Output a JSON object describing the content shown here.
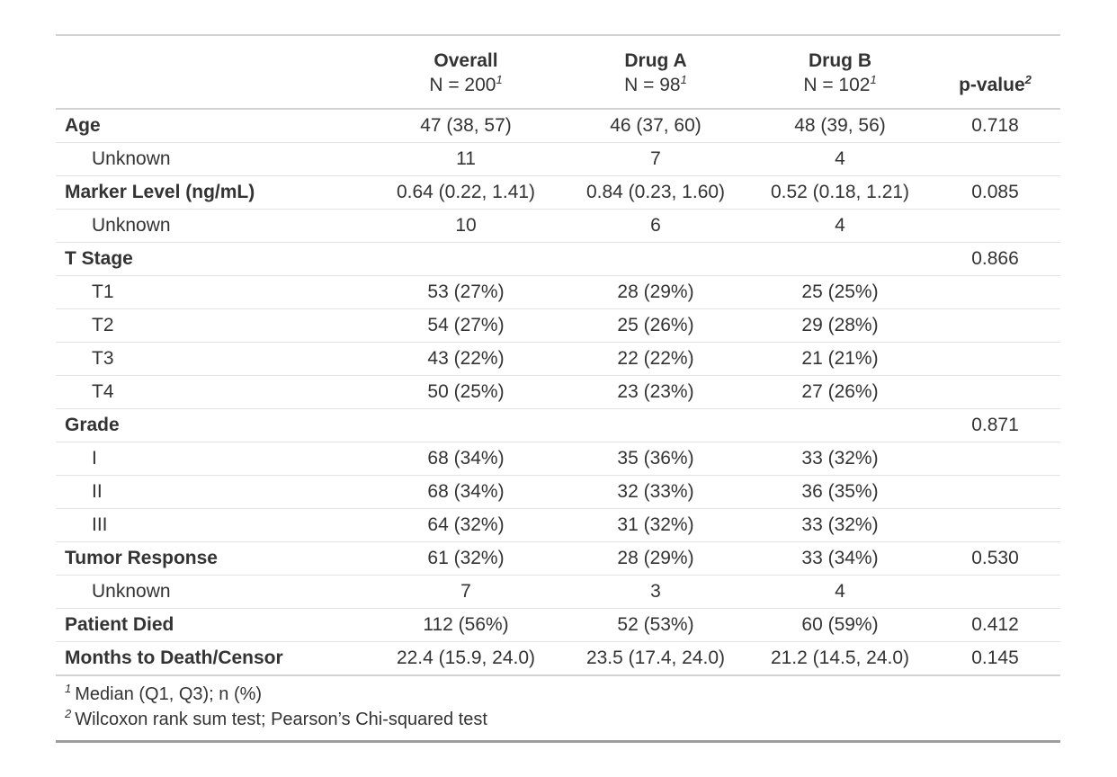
{
  "style": {
    "text_color": "#333333",
    "rule_light": "#e4e4e4",
    "rule_medium": "#d2d2d2",
    "rule_dark": "#9d9d9d",
    "background": "#ffffff"
  },
  "table": {
    "columns": [
      {
        "label": "",
        "sublabel": "",
        "footnote_ref": ""
      },
      {
        "label": "Overall",
        "sublabel": "N = 200",
        "footnote_ref": "1"
      },
      {
        "label": "Drug A",
        "sublabel": "N = 98",
        "footnote_ref": "1"
      },
      {
        "label": "Drug B",
        "sublabel": "N = 102",
        "footnote_ref": "1"
      },
      {
        "label": "p-value",
        "sublabel": "",
        "footnote_ref": "2"
      }
    ],
    "rows": [
      {
        "label": "Age",
        "level": "group",
        "overall": "47 (38, 57)",
        "drug_a": "46 (37, 60)",
        "drug_b": "48 (39, 56)",
        "p_value": "0.718"
      },
      {
        "label": "Unknown",
        "level": "sub",
        "overall": "11",
        "drug_a": "7",
        "drug_b": "4",
        "p_value": ""
      },
      {
        "label": "Marker Level (ng/mL)",
        "level": "group",
        "overall": "0.64 (0.22, 1.41)",
        "drug_a": "0.84 (0.23, 1.60)",
        "drug_b": "0.52 (0.18, 1.21)",
        "p_value": "0.085"
      },
      {
        "label": "Unknown",
        "level": "sub",
        "overall": "10",
        "drug_a": "6",
        "drug_b": "4",
        "p_value": ""
      },
      {
        "label": "T Stage",
        "level": "group",
        "overall": "",
        "drug_a": "",
        "drug_b": "",
        "p_value": "0.866"
      },
      {
        "label": "T1",
        "level": "sub",
        "overall": "53 (27%)",
        "drug_a": "28 (29%)",
        "drug_b": "25 (25%)",
        "p_value": ""
      },
      {
        "label": "T2",
        "level": "sub",
        "overall": "54 (27%)",
        "drug_a": "25 (26%)",
        "drug_b": "29 (28%)",
        "p_value": ""
      },
      {
        "label": "T3",
        "level": "sub",
        "overall": "43 (22%)",
        "drug_a": "22 (22%)",
        "drug_b": "21 (21%)",
        "p_value": ""
      },
      {
        "label": "T4",
        "level": "sub",
        "overall": "50 (25%)",
        "drug_a": "23 (23%)",
        "drug_b": "27 (26%)",
        "p_value": ""
      },
      {
        "label": "Grade",
        "level": "group",
        "overall": "",
        "drug_a": "",
        "drug_b": "",
        "p_value": "0.871"
      },
      {
        "label": "I",
        "level": "sub",
        "overall": "68 (34%)",
        "drug_a": "35 (36%)",
        "drug_b": "33 (32%)",
        "p_value": ""
      },
      {
        "label": "II",
        "level": "sub",
        "overall": "68 (34%)",
        "drug_a": "32 (33%)",
        "drug_b": "36 (35%)",
        "p_value": ""
      },
      {
        "label": "III",
        "level": "sub",
        "overall": "64 (32%)",
        "drug_a": "31 (32%)",
        "drug_b": "33 (32%)",
        "p_value": ""
      },
      {
        "label": "Tumor Response",
        "level": "group",
        "overall": "61 (32%)",
        "drug_a": "28 (29%)",
        "drug_b": "33 (34%)",
        "p_value": "0.530"
      },
      {
        "label": "Unknown",
        "level": "sub",
        "overall": "7",
        "drug_a": "3",
        "drug_b": "4",
        "p_value": ""
      },
      {
        "label": "Patient Died",
        "level": "group",
        "overall": "112 (56%)",
        "drug_a": "52 (53%)",
        "drug_b": "60 (59%)",
        "p_value": "0.412"
      },
      {
        "label": "Months to Death/Censor",
        "level": "group",
        "overall": "22.4 (15.9, 24.0)",
        "drug_a": "23.5 (17.4, 24.0)",
        "drug_b": "21.2 (14.5, 24.0)",
        "p_value": "0.145"
      }
    ],
    "footnotes": [
      {
        "marker": "1",
        "text": "Median (Q1, Q3); n (%)"
      },
      {
        "marker": "2",
        "text": "Wilcoxon rank sum test; Pearson’s Chi-squared test"
      }
    ]
  }
}
